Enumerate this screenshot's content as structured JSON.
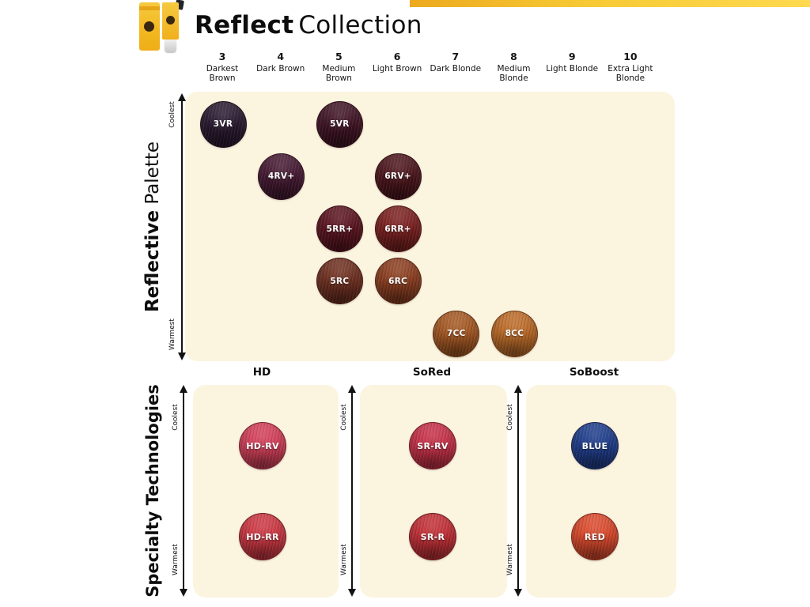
{
  "colors": {
    "accent_yellow": "#F3BD2A",
    "panel_cream": "#FBF4DF",
    "text": "#111111"
  },
  "header": {
    "title_bold": "Reflect",
    "title_regular": "Collection"
  },
  "chart_data": {
    "type": "scatter",
    "title": "Reflect Collection",
    "x_axis": {
      "categories": [
        {
          "number": "3",
          "name": "Darkest Brown"
        },
        {
          "number": "4",
          "name": "Dark Brown"
        },
        {
          "number": "5",
          "name": "Medium Brown"
        },
        {
          "number": "6",
          "name": "Light Brown"
        },
        {
          "number": "7",
          "name": "Dark Blonde"
        },
        {
          "number": "8",
          "name": "Medium Blonde"
        },
        {
          "number": "9",
          "name": "Light Blonde"
        },
        {
          "number": "10",
          "name": "Extra Light Blonde"
        }
      ]
    },
    "y_axis": {
      "top": "Coolest",
      "bottom": "Warmest"
    },
    "sections": [
      {
        "name": "Reflective Palette",
        "label_bold": "Reflective",
        "label_regular": "Palette",
        "swatches": [
          {
            "code": "3VR",
            "hex": "#2b1a31",
            "column": 3,
            "row": 1
          },
          {
            "code": "5VR",
            "hex": "#421425",
            "column": 5,
            "row": 1
          },
          {
            "code": "4RV+",
            "hex": "#471a33",
            "column": 4,
            "row": 2
          },
          {
            "code": "6RV+",
            "hex": "#4e161d",
            "column": 6,
            "row": 2
          },
          {
            "code": "5RR+",
            "hex": "#5d1420",
            "column": 5,
            "row": 3
          },
          {
            "code": "6RR+",
            "hex": "#7e2120",
            "column": 6,
            "row": 3
          },
          {
            "code": "5RC",
            "hex": "#713020",
            "column": 5,
            "row": 4
          },
          {
            "code": "6RC",
            "hex": "#8f3f20",
            "column": 6,
            "row": 4
          },
          {
            "code": "7CC",
            "hex": "#a95a23",
            "column": 7,
            "row": 5
          },
          {
            "code": "8CC",
            "hex": "#c06d28",
            "column": 8,
            "row": 5
          }
        ]
      },
      {
        "name": "Specialty Technologies",
        "panels": [
          {
            "name": "HD",
            "swatches": [
              {
                "code": "HD-RV",
                "hex": "#d8405a",
                "position": "cool"
              },
              {
                "code": "HD-RR",
                "hex": "#d13843",
                "position": "warm"
              }
            ]
          },
          {
            "name": "SoRed",
            "swatches": [
              {
                "code": "SR-RV",
                "hex": "#cb3148",
                "position": "cool"
              },
              {
                "code": "SR-R",
                "hex": "#c63037",
                "position": "warm"
              }
            ]
          },
          {
            "name": "SoBoost",
            "swatches": [
              {
                "code": "BLUE",
                "hex": "#1f3e8f",
                "position": "cool"
              },
              {
                "code": "RED",
                "hex": "#e04b2d",
                "position": "warm"
              }
            ]
          }
        ]
      }
    ]
  }
}
